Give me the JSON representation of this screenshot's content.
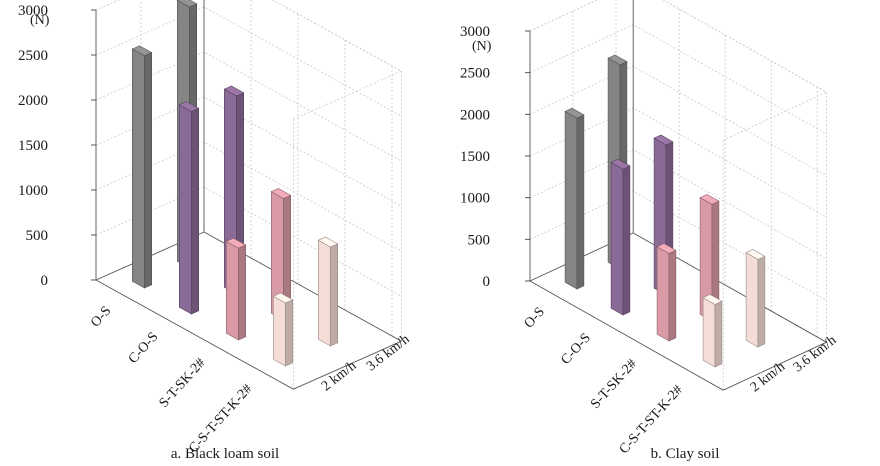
{
  "chart_data": [
    {
      "type": "bar3d",
      "caption": "a. Black loam soil",
      "unit_label": "(N)",
      "categories": [
        "O-S",
        "C-O-S",
        "S-T-SK-2#",
        "C-S-T-ST-K-2#"
      ],
      "depth_categories": [
        "2 km/h",
        "3.6 km/h"
      ],
      "ylim": [
        0,
        3000
      ],
      "yticks": [
        0,
        500,
        1000,
        1500,
        2000,
        2500,
        3000
      ],
      "grid": true,
      "series": [
        {
          "depth_label": "2 km/h",
          "values": [
            2580,
            2250,
            1020,
            700
          ]
        },
        {
          "depth_label": "3.6 km/h",
          "values": [
            2900,
            2200,
            1350,
            1100
          ]
        }
      ],
      "colors": [
        "#858585",
        "#8a6a96",
        "#d99aa5",
        "#f4ddd6"
      ]
    },
    {
      "type": "bar3d",
      "caption": "b. Clay soil",
      "unit_label": "(N)",
      "categories": [
        "O-S",
        "C-O-S",
        "S-T-SK-2#",
        "C-S-T-ST-K-2#"
      ],
      "depth_categories": [
        "2 km/h",
        "3.6 km/h"
      ],
      "ylim": [
        0,
        3000
      ],
      "yticks": [
        0,
        500,
        1000,
        1500,
        2000,
        2500,
        3000
      ],
      "grid": true,
      "series": [
        {
          "depth_label": "2 km/h",
          "values": [
            2050,
            1750,
            1050,
            750
          ]
        },
        {
          "depth_label": "3.6 km/h",
          "values": [
            2450,
            1800,
            1400,
            1050
          ]
        }
      ],
      "colors": [
        "#858585",
        "#8a6a96",
        "#d99aa5",
        "#f4ddd6"
      ]
    }
  ]
}
